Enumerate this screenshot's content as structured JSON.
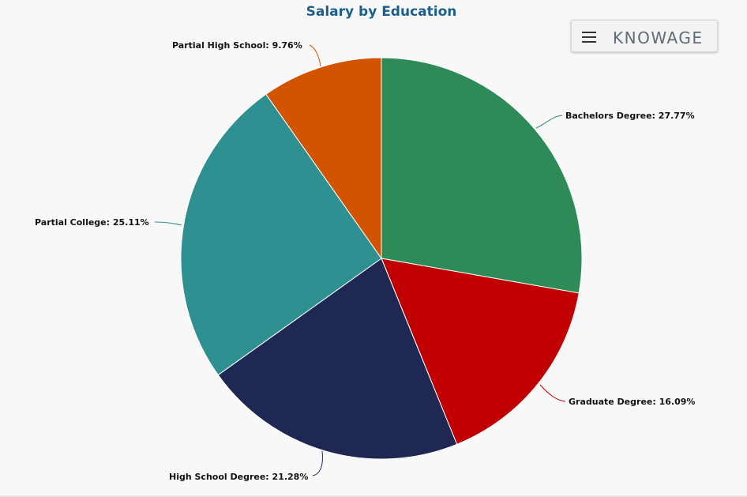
{
  "title": "Salary by Education",
  "toolbar": {
    "menu_icon": "hamburger-menu-icon",
    "brand": "KNOWAGE"
  },
  "chart_data": {
    "type": "pie",
    "title": "Salary by Education",
    "slices": [
      {
        "label": "Bachelors Degree",
        "value": 27.77,
        "display": "Bachelors Degree: 27.77%",
        "color": "#2e8b57"
      },
      {
        "label": "Graduate Degree",
        "value": 16.09,
        "display": "Graduate Degree: 16.09%",
        "color": "#c00000"
      },
      {
        "label": "High School Degree",
        "value": 21.28,
        "display": "High School Degree: 21.28%",
        "color": "#1e2852"
      },
      {
        "label": "Partial College",
        "value": 25.11,
        "display": "Partial College: 25.11%",
        "color": "#2e9090"
      },
      {
        "label": "Partial High School",
        "value": 9.76,
        "display": "Partial High School: 9.76%",
        "color": "#d35400"
      }
    ]
  }
}
